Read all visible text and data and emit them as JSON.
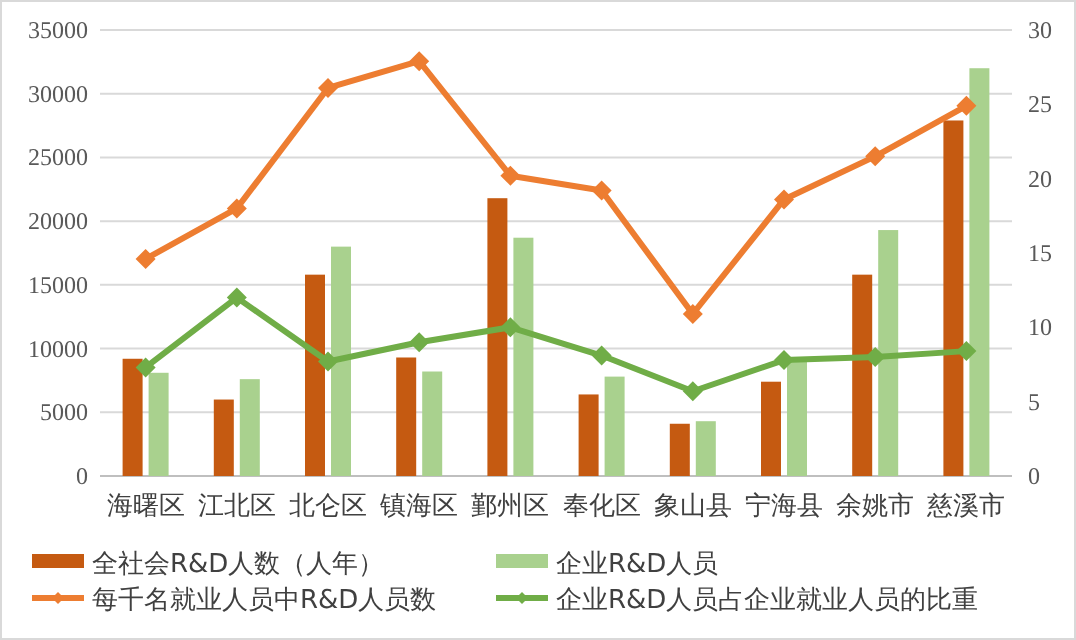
{
  "chart_data": {
    "type": "bar",
    "categories": [
      "海曙区",
      "江北区",
      "北仑区",
      "镇海区",
      "鄞州区",
      "奉化区",
      "象山县",
      "宁海县",
      "余姚市",
      "慈溪市"
    ],
    "series": [
      {
        "name": "全社会R&D人数（人年）",
        "color": "#c55a11",
        "values": [
          9200,
          6000,
          15800,
          9300,
          21800,
          6400,
          4100,
          7400,
          15800,
          27900
        ]
      },
      {
        "name": "企业R&D人员",
        "color": "#a9d18e",
        "values": [
          8100,
          7600,
          18000,
          8200,
          18700,
          7800,
          4300,
          9100,
          19300,
          32000
        ]
      },
      {
        "name": "每千名就业人员中R&D人员数",
        "type": "line",
        "axis": "y2",
        "color": "#ed7d31",
        "values": [
          14.6,
          18.0,
          26.1,
          27.9,
          20.2,
          19.2,
          10.9,
          18.6,
          21.5,
          24.9
        ]
      },
      {
        "name": "企业R&D人员占企业就业人员的比重",
        "type": "line",
        "axis": "y2",
        "color": "#70ad47",
        "values": [
          7.3,
          12.0,
          7.7,
          9.0,
          10.0,
          8.1,
          5.7,
          7.8,
          8.0,
          8.4
        ]
      }
    ],
    "ylim": [
      0,
      35000
    ],
    "yticks": [
      0,
      5000,
      10000,
      15000,
      20000,
      25000,
      30000,
      35000
    ],
    "y2lim": [
      0,
      30
    ],
    "y2ticks": [
      0,
      5,
      10,
      15,
      20,
      25,
      30
    ],
    "grid": "y",
    "legend": "bottom",
    "marker": "diamond"
  }
}
